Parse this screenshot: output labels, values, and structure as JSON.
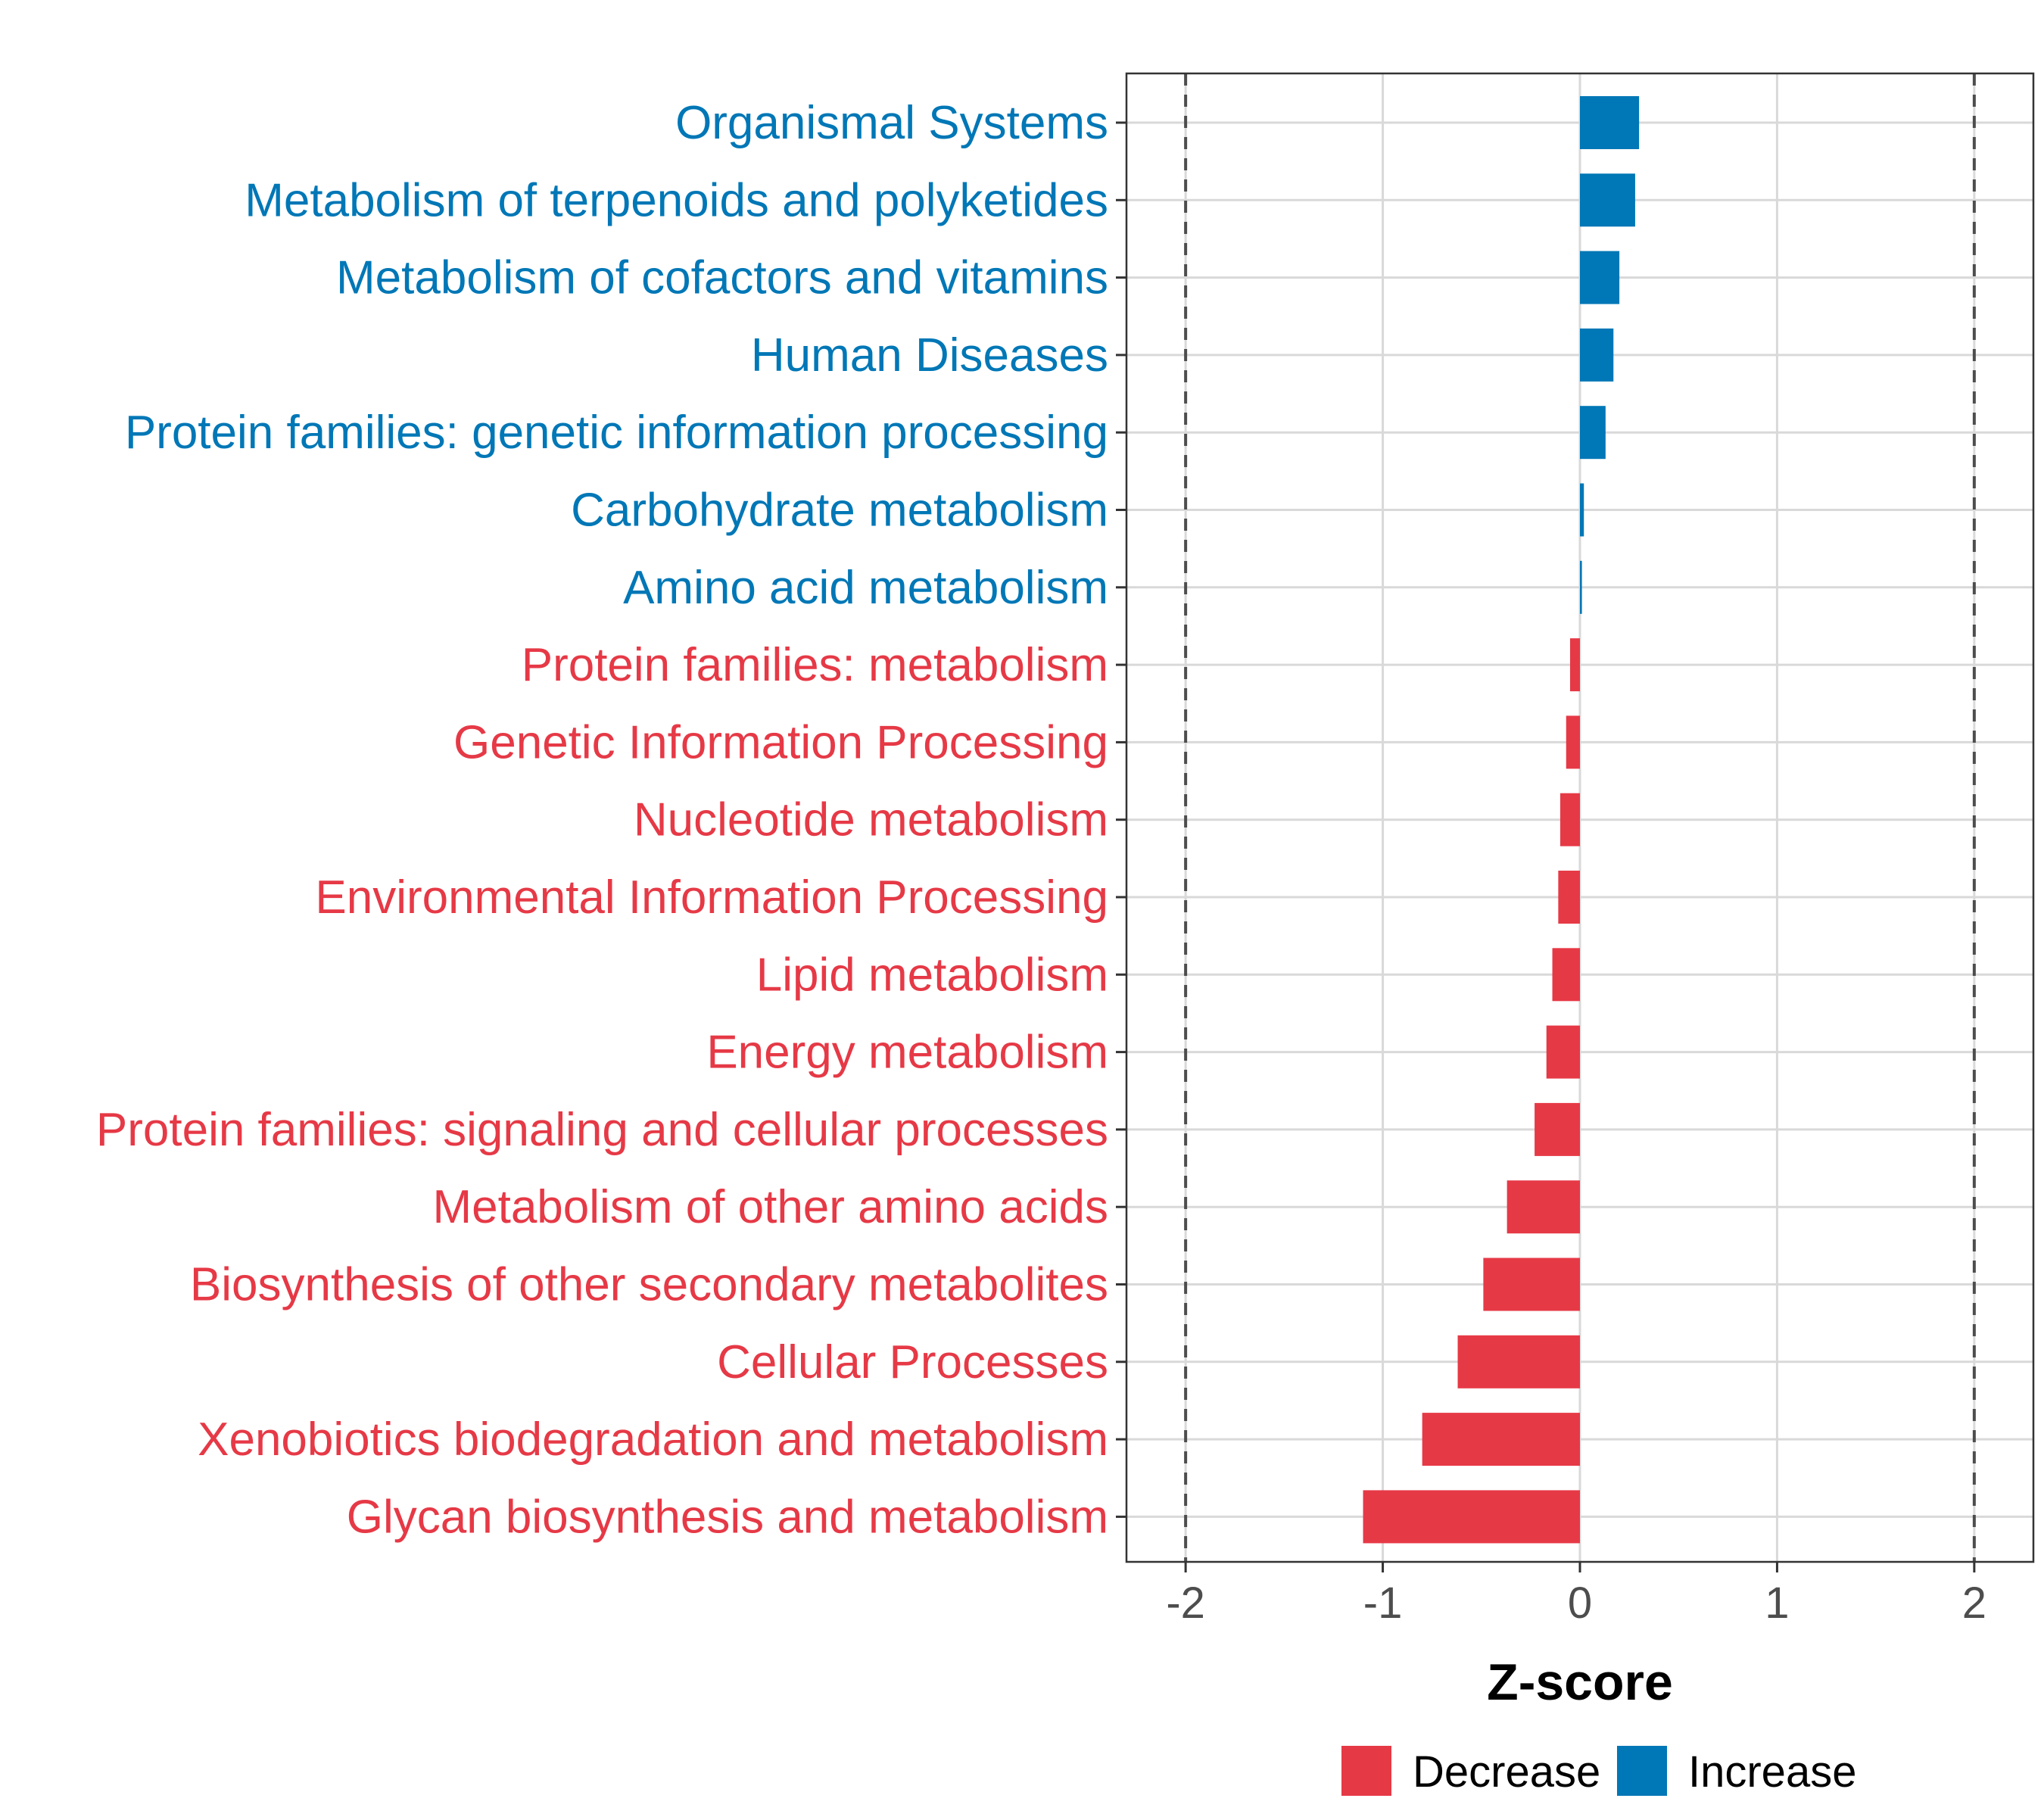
{
  "chart_data": {
    "type": "bar",
    "orientation": "horizontal",
    "categories": [
      "Organismal Systems",
      "Metabolism of terpenoids and polyketides",
      "Metabolism of cofactors and vitamins",
      "Human Diseases",
      "Protein families: genetic information processing",
      "Carbohydrate metabolism",
      "Amino acid metabolism",
      "Protein families: metabolism",
      "Genetic Information Processing",
      "Nucleotide metabolism",
      "Environmental Information Processing",
      "Lipid metabolism",
      "Energy metabolism",
      "Protein families: signaling and cellular processes",
      "Metabolism of other amino acids",
      "Biosynthesis of other secondary metabolites",
      "Cellular Processes",
      "Xenobiotics biodegradation and metabolism",
      "Glycan biosynthesis and metabolism"
    ],
    "values": [
      0.3,
      0.28,
      0.2,
      0.17,
      0.13,
      0.02,
      0.01,
      -0.05,
      -0.07,
      -0.1,
      -0.11,
      -0.14,
      -0.17,
      -0.23,
      -0.37,
      -0.49,
      -0.62,
      -0.8,
      -1.1
    ],
    "xlabel": "Z-score",
    "ylabel": "",
    "xlim": [
      -2.3,
      2.3
    ],
    "xticks": [
      -2,
      -1,
      0,
      1,
      2
    ],
    "xtick_labels": [
      "-2",
      "-1",
      "0",
      "1",
      "2"
    ],
    "reference_lines": [
      -2,
      2
    ],
    "grid": true,
    "legend": {
      "position": "bottom",
      "entries": [
        {
          "label": "Decrease",
          "color": "#e63946"
        },
        {
          "label": "Increase",
          "color": "#0077b6"
        }
      ]
    },
    "colors": {
      "decrease": "#e63946",
      "increase": "#0077b6"
    }
  }
}
